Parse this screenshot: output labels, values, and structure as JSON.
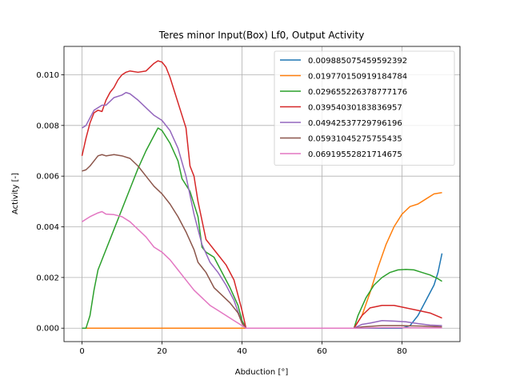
{
  "chart_data": {
    "type": "line",
    "title": "Teres minor Input(Box) Lf0, Output Activity",
    "xlabel": "Abduction [°]",
    "ylabel": "Activity [-]",
    "xlim": [
      -4.5,
      94.5
    ],
    "ylim": [
      -0.00053,
      0.01112
    ],
    "xticks": [
      0,
      20,
      40,
      60,
      80
    ],
    "yticks": [
      0.0,
      0.002,
      0.004,
      0.006,
      0.008,
      0.01
    ],
    "ytick_labels": [
      "0.000",
      "0.002",
      "0.004",
      "0.006",
      "0.008",
      "0.010"
    ],
    "grid": true,
    "legend_position": "top-right",
    "series": [
      {
        "name": "0.009885075459592392",
        "color": "#1f77b4",
        "points": [
          [
            0,
            0
          ],
          [
            40,
            0
          ],
          [
            41,
            0
          ],
          [
            68,
            0
          ],
          [
            75,
            0
          ],
          [
            80,
            0
          ],
          [
            82,
            0.0001
          ],
          [
            84,
            0.0005
          ],
          [
            86,
            0.0011
          ],
          [
            88,
            0.0017
          ],
          [
            89,
            0.0022
          ],
          [
            90,
            0.00295
          ]
        ]
      },
      {
        "name": "0.019770150919184784",
        "color": "#ff7f0e",
        "points": [
          [
            0,
            0
          ],
          [
            40,
            0
          ],
          [
            41,
            0
          ],
          [
            68,
            0
          ],
          [
            70,
            0.0005
          ],
          [
            72,
            0.0014
          ],
          [
            74,
            0.0024
          ],
          [
            76,
            0.0033
          ],
          [
            78,
            0.004
          ],
          [
            80,
            0.0045
          ],
          [
            82,
            0.0048
          ],
          [
            84,
            0.0049
          ],
          [
            86,
            0.0051
          ],
          [
            88,
            0.0053
          ],
          [
            90,
            0.00535
          ]
        ]
      },
      {
        "name": "0.029655226378777176",
        "color": "#2ca02c",
        "points": [
          [
            0,
            0
          ],
          [
            1,
            0
          ],
          [
            2,
            0.0005
          ],
          [
            3,
            0.0015
          ],
          [
            4,
            0.0023
          ],
          [
            6,
            0.0031
          ],
          [
            8,
            0.0039
          ],
          [
            10,
            0.0047
          ],
          [
            12,
            0.0055
          ],
          [
            14,
            0.0063
          ],
          [
            16,
            0.007
          ],
          [
            18,
            0.0076
          ],
          [
            19,
            0.0079
          ],
          [
            20,
            0.0078
          ],
          [
            22,
            0.0073
          ],
          [
            24,
            0.0066
          ],
          [
            25,
            0.0059
          ],
          [
            27,
            0.0054
          ],
          [
            29,
            0.0044
          ],
          [
            30,
            0.0032
          ],
          [
            31,
            0.003
          ],
          [
            33,
            0.0028
          ],
          [
            35,
            0.0022
          ],
          [
            37,
            0.0016
          ],
          [
            39,
            0.0009
          ],
          [
            40,
            0.0003
          ],
          [
            41,
            0
          ],
          [
            68,
            0
          ],
          [
            69,
            0.0005
          ],
          [
            71,
            0.0012
          ],
          [
            73,
            0.0017
          ],
          [
            75,
            0.002
          ],
          [
            77,
            0.0022
          ],
          [
            79,
            0.0023
          ],
          [
            81,
            0.00232
          ],
          [
            83,
            0.0023
          ],
          [
            85,
            0.0022
          ],
          [
            87,
            0.0021
          ],
          [
            89,
            0.00195
          ],
          [
            90,
            0.00185
          ]
        ]
      },
      {
        "name": "0.03954030183836957",
        "color": "#d62728",
        "points": [
          [
            0,
            0.0068
          ],
          [
            1,
            0.0075
          ],
          [
            2,
            0.0081
          ],
          [
            3,
            0.0085
          ],
          [
            4,
            0.0086
          ],
          [
            5,
            0.00855
          ],
          [
            6,
            0.009
          ],
          [
            7,
            0.0093
          ],
          [
            8,
            0.0095
          ],
          [
            9,
            0.0098
          ],
          [
            10,
            0.01
          ],
          [
            11,
            0.0101
          ],
          [
            12,
            0.01015
          ],
          [
            14,
            0.0101
          ],
          [
            16,
            0.01015
          ],
          [
            17,
            0.0103
          ],
          [
            18,
            0.01045
          ],
          [
            19,
            0.01055
          ],
          [
            20,
            0.0105
          ],
          [
            21,
            0.0103
          ],
          [
            22,
            0.0099
          ],
          [
            24,
            0.0089
          ],
          [
            26,
            0.0079
          ],
          [
            27,
            0.0064
          ],
          [
            28,
            0.006
          ],
          [
            29,
            0.005
          ],
          [
            31,
            0.0035
          ],
          [
            32,
            0.0033
          ],
          [
            34,
            0.0029
          ],
          [
            36,
            0.0025
          ],
          [
            38,
            0.0019
          ],
          [
            40,
            0.0007
          ],
          [
            41,
            0
          ],
          [
            68,
            0
          ],
          [
            70,
            0.0005
          ],
          [
            72,
            0.0008
          ],
          [
            75,
            0.0009
          ],
          [
            78,
            0.0009
          ],
          [
            81,
            0.0008
          ],
          [
            84,
            0.0007
          ],
          [
            87,
            0.0006
          ],
          [
            90,
            0.0004
          ]
        ]
      },
      {
        "name": "0.04942537729796196",
        "color": "#9467bd",
        "points": [
          [
            0,
            0.0079
          ],
          [
            1,
            0.008
          ],
          [
            2,
            0.0083
          ],
          [
            3,
            0.0086
          ],
          [
            5,
            0.0088
          ],
          [
            6,
            0.0088
          ],
          [
            8,
            0.0091
          ],
          [
            10,
            0.0092
          ],
          [
            11,
            0.0093
          ],
          [
            12,
            0.00925
          ],
          [
            14,
            0.009
          ],
          [
            16,
            0.0087
          ],
          [
            18,
            0.0084
          ],
          [
            20,
            0.0082
          ],
          [
            22,
            0.0078
          ],
          [
            24,
            0.0071
          ],
          [
            26,
            0.006
          ],
          [
            28,
            0.0045
          ],
          [
            30,
            0.0033
          ],
          [
            32,
            0.0026
          ],
          [
            34,
            0.0022
          ],
          [
            36,
            0.0017
          ],
          [
            38,
            0.0011
          ],
          [
            40,
            0.0002
          ],
          [
            41,
            0
          ],
          [
            68,
            0
          ],
          [
            70,
            0.00015
          ],
          [
            72,
            0.0002
          ],
          [
            75,
            0.0003
          ],
          [
            78,
            0.00028
          ],
          [
            81,
            0.00025
          ],
          [
            84,
            0.00018
          ],
          [
            87,
            0.00012
          ],
          [
            90,
            0.0001
          ]
        ]
      },
      {
        "name": "0.05931045275755435",
        "color": "#8c564b",
        "points": [
          [
            0,
            0.0062
          ],
          [
            1,
            0.00625
          ],
          [
            2,
            0.0064
          ],
          [
            3,
            0.0066
          ],
          [
            4,
            0.0068
          ],
          [
            5,
            0.00685
          ],
          [
            6,
            0.0068
          ],
          [
            8,
            0.00685
          ],
          [
            10,
            0.0068
          ],
          [
            12,
            0.0067
          ],
          [
            14,
            0.0064
          ],
          [
            16,
            0.006
          ],
          [
            18,
            0.0056
          ],
          [
            20,
            0.0053
          ],
          [
            22,
            0.0049
          ],
          [
            24,
            0.0044
          ],
          [
            26,
            0.0038
          ],
          [
            28,
            0.0031
          ],
          [
            29,
            0.0026
          ],
          [
            31,
            0.0022
          ],
          [
            33,
            0.0016
          ],
          [
            35,
            0.0013
          ],
          [
            37,
            0.001
          ],
          [
            39,
            0.0006
          ],
          [
            40,
            0.0002
          ],
          [
            41,
            0
          ],
          [
            68,
            0
          ],
          [
            70,
            5e-05
          ],
          [
            75,
            0.0001
          ],
          [
            80,
            0.0001
          ],
          [
            85,
            8e-05
          ],
          [
            90,
            5e-05
          ]
        ]
      },
      {
        "name": "0.06919552821714675",
        "color": "#e377c2",
        "points": [
          [
            0,
            0.0042
          ],
          [
            1,
            0.0043
          ],
          [
            2,
            0.0044
          ],
          [
            4,
            0.00455
          ],
          [
            5,
            0.0046
          ],
          [
            6,
            0.0045
          ],
          [
            8,
            0.00448
          ],
          [
            10,
            0.0044
          ],
          [
            12,
            0.0042
          ],
          [
            14,
            0.0039
          ],
          [
            16,
            0.0036
          ],
          [
            18,
            0.0032
          ],
          [
            20,
            0.003
          ],
          [
            22,
            0.0027
          ],
          [
            24,
            0.0023
          ],
          [
            26,
            0.0019
          ],
          [
            28,
            0.0015
          ],
          [
            30,
            0.0012
          ],
          [
            32,
            0.0009
          ],
          [
            34,
            0.0007
          ],
          [
            36,
            0.0005
          ],
          [
            38,
            0.0003
          ],
          [
            40,
            0.0001
          ],
          [
            41,
            0
          ],
          [
            68,
            0
          ],
          [
            75,
            2e-05
          ],
          [
            80,
            2e-05
          ],
          [
            85,
            1e-05
          ],
          [
            90,
            1e-05
          ]
        ]
      }
    ]
  }
}
